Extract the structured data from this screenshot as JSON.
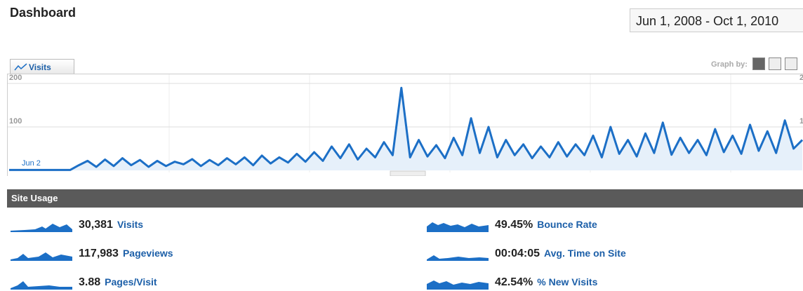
{
  "header": {
    "title": "Dashboard",
    "date_range": "Jun 1, 2008 - Oct 1, 2010"
  },
  "graph_tab": "Visits",
  "graph_by": "Graph by:",
  "chart_data": {
    "type": "line",
    "series_name": "Visits",
    "x_label": "Jun 2",
    "color": "#1c6fc6",
    "values": [
      1,
      1,
      1,
      1,
      1,
      1,
      1,
      1,
      12,
      22,
      8,
      25,
      10,
      28,
      12,
      24,
      8,
      22,
      10,
      20,
      14,
      26,
      10,
      24,
      12,
      28,
      14,
      30,
      12,
      34,
      16,
      30,
      18,
      38,
      20,
      42,
      22,
      55,
      28,
      60,
      25,
      50,
      30,
      65,
      35,
      190,
      30,
      70,
      32,
      58,
      28,
      75,
      35,
      120,
      40,
      100,
      30,
      70,
      35,
      60,
      28,
      55,
      30,
      65,
      32,
      60,
      35,
      80,
      30,
      100,
      38,
      70,
      32,
      85,
      40,
      110,
      36,
      75,
      40,
      70,
      35,
      95,
      42,
      80,
      38,
      105,
      45,
      90,
      40,
      115,
      50,
      70
    ],
    "ylim": [
      0,
      200
    ],
    "yticks": [
      100,
      200
    ],
    "grid": true
  },
  "site_usage": {
    "title": "Site Usage",
    "metrics": [
      {
        "value": "30,381",
        "label": "Visits"
      },
      {
        "value": "117,983",
        "label": "Pageviews"
      },
      {
        "value": "3.88",
        "label": "Pages/Visit"
      },
      {
        "value": "49.45%",
        "label": "Bounce Rate"
      },
      {
        "value": "00:04:05",
        "label": "Avg. Time on Site"
      },
      {
        "value": "42.54%",
        "label": "% New Visits"
      }
    ]
  }
}
